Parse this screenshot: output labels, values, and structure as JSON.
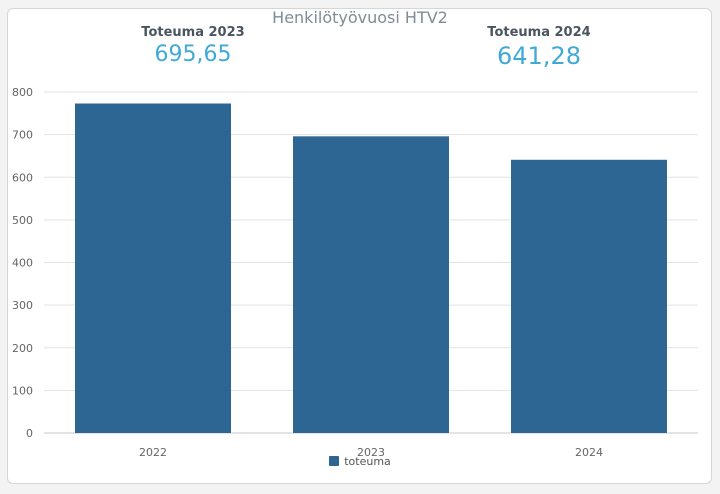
{
  "chart_data": {
    "type": "bar",
    "title": "Henkilötyövuosi HTV2",
    "categories": [
      "2022",
      "2023",
      "2024"
    ],
    "series": [
      {
        "name": "toteuma",
        "values": [
          773,
          696,
          641
        ]
      }
    ],
    "ylim": [
      0,
      800
    ],
    "yticks": [
      "0",
      "100",
      "200",
      "300",
      "400",
      "500",
      "600",
      "700",
      "800"
    ],
    "grid": true,
    "legend_position": "bottom",
    "bar_color": "#2d6593"
  },
  "kpis": [
    {
      "label": "Toteuma 2023",
      "value": "695,65"
    },
    {
      "label": "Toteuma 2024",
      "value": "641,28"
    }
  ]
}
